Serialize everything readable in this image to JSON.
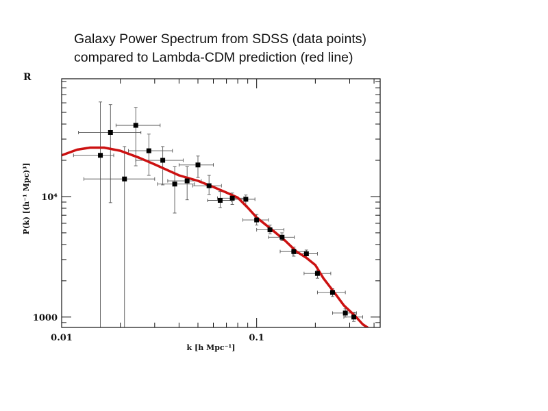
{
  "slide": {
    "title_line1": "Galaxy Power Spectrum from SDSS (data points)",
    "title_line2": "compared to Lambda-CDM prediction (red line)"
  },
  "chart_data": {
    "type": "scatter",
    "title": "",
    "xlabel": "k [h Mpc⁻¹]",
    "ylabel": "P(k) [(h⁻¹ Mpc)³]",
    "clipped_corner_text": "R",
    "x_scale": "log",
    "y_scale": "log",
    "xlim": [
      0.01,
      0.43
    ],
    "ylim": [
      820,
      95000
    ],
    "x_ticks": [
      {
        "value": 0.01,
        "label": "0.01"
      },
      {
        "value": 0.1,
        "label": "0.1"
      }
    ],
    "y_ticks": [
      {
        "value": 1000,
        "label": "1000"
      },
      {
        "value": 10000,
        "label": "10⁴"
      }
    ],
    "grid": false,
    "legend": "none",
    "colors": {
      "model_line": "#cc1111",
      "points": "#000000",
      "errorbars": "#555555"
    },
    "series": [
      {
        "kind": "points_with_errorbars",
        "points": [
          {
            "x": 0.0158,
            "y": 22000,
            "xlo": 0.0115,
            "xhi": 0.0185,
            "ylo": 820,
            "yhi": 61000
          },
          {
            "x": 0.0178,
            "y": 34000,
            "xlo": 0.0122,
            "xhi": 0.0255,
            "ylo": 8900,
            "yhi": 58000
          },
          {
            "x": 0.021,
            "y": 14000,
            "xlo": 0.013,
            "xhi": 0.03,
            "ylo": 820,
            "yhi": 26000
          },
          {
            "x": 0.024,
            "y": 39000,
            "xlo": 0.019,
            "xhi": 0.032,
            "ylo": 18000,
            "yhi": 55000
          },
          {
            "x": 0.028,
            "y": 24000,
            "xlo": 0.022,
            "xhi": 0.037,
            "ylo": 15000,
            "yhi": 33000
          },
          {
            "x": 0.033,
            "y": 20000,
            "xlo": 0.024,
            "xhi": 0.042,
            "ylo": 12500,
            "yhi": 26000
          },
          {
            "x": 0.038,
            "y": 12700,
            "xlo": 0.031,
            "xhi": 0.048,
            "ylo": 7300,
            "yhi": 17700
          },
          {
            "x": 0.044,
            "y": 13500,
            "xlo": 0.035,
            "xhi": 0.052,
            "ylo": 9400,
            "yhi": 17700
          },
          {
            "x": 0.05,
            "y": 18300,
            "xlo": 0.04,
            "xhi": 0.06,
            "ylo": 14400,
            "yhi": 21700
          },
          {
            "x": 0.057,
            "y": 12300,
            "xlo": 0.047,
            "xhi": 0.066,
            "ylo": 10400,
            "yhi": 15000
          },
          {
            "x": 0.065,
            "y": 9300,
            "xlo": 0.056,
            "xhi": 0.074,
            "ylo": 8100,
            "yhi": 11000
          },
          {
            "x": 0.075,
            "y": 9700,
            "xlo": 0.063,
            "xhi": 0.086,
            "ylo": 8600,
            "yhi": 10700
          },
          {
            "x": 0.088,
            "y": 9500,
            "xlo": 0.076,
            "xhi": 0.098,
            "ylo": 8500,
            "yhi": 10300
          },
          {
            "x": 0.1,
            "y": 6400,
            "xlo": 0.085,
            "xhi": 0.115,
            "ylo": 5800,
            "yhi": 7100
          },
          {
            "x": 0.117,
            "y": 5300,
            "xlo": 0.1,
            "xhi": 0.138,
            "ylo": 4900,
            "yhi": 5800
          },
          {
            "x": 0.135,
            "y": 4600,
            "xlo": 0.115,
            "xhi": 0.156,
            "ylo": 4300,
            "yhi": 5000
          },
          {
            "x": 0.155,
            "y": 3500,
            "xlo": 0.132,
            "xhi": 0.18,
            "ylo": 3200,
            "yhi": 3800
          },
          {
            "x": 0.18,
            "y": 3350,
            "xlo": 0.153,
            "xhi": 0.205,
            "ylo": 3100,
            "yhi": 3600
          },
          {
            "x": 0.205,
            "y": 2300,
            "xlo": 0.175,
            "xhi": 0.24,
            "ylo": 2100,
            "yhi": 2450
          },
          {
            "x": 0.245,
            "y": 1600,
            "xlo": 0.205,
            "xhi": 0.285,
            "ylo": 1480,
            "yhi": 1720
          },
          {
            "x": 0.285,
            "y": 1080,
            "xlo": 0.245,
            "xhi": 0.325,
            "ylo": 1000,
            "yhi": 1170
          },
          {
            "x": 0.315,
            "y": 1000,
            "xlo": 0.28,
            "xhi": 0.35,
            "ylo": 920,
            "yhi": 1090
          }
        ]
      },
      {
        "kind": "model_line",
        "points": [
          [
            0.01,
            22000
          ],
          [
            0.012,
            24500
          ],
          [
            0.014,
            25500
          ],
          [
            0.0165,
            25500
          ],
          [
            0.02,
            24000
          ],
          [
            0.025,
            21000
          ],
          [
            0.03,
            18500
          ],
          [
            0.04,
            15000
          ],
          [
            0.05,
            13500
          ],
          [
            0.06,
            12000
          ],
          [
            0.07,
            10800
          ],
          [
            0.08,
            9800
          ],
          [
            0.09,
            8100
          ],
          [
            0.1,
            6700
          ],
          [
            0.12,
            5300
          ],
          [
            0.14,
            4300
          ],
          [
            0.16,
            3500
          ],
          [
            0.18,
            3100
          ],
          [
            0.2,
            2700
          ],
          [
            0.22,
            2100
          ],
          [
            0.25,
            1600
          ],
          [
            0.28,
            1250
          ],
          [
            0.32,
            1020
          ],
          [
            0.35,
            870
          ],
          [
            0.37,
            820
          ]
        ]
      }
    ]
  }
}
